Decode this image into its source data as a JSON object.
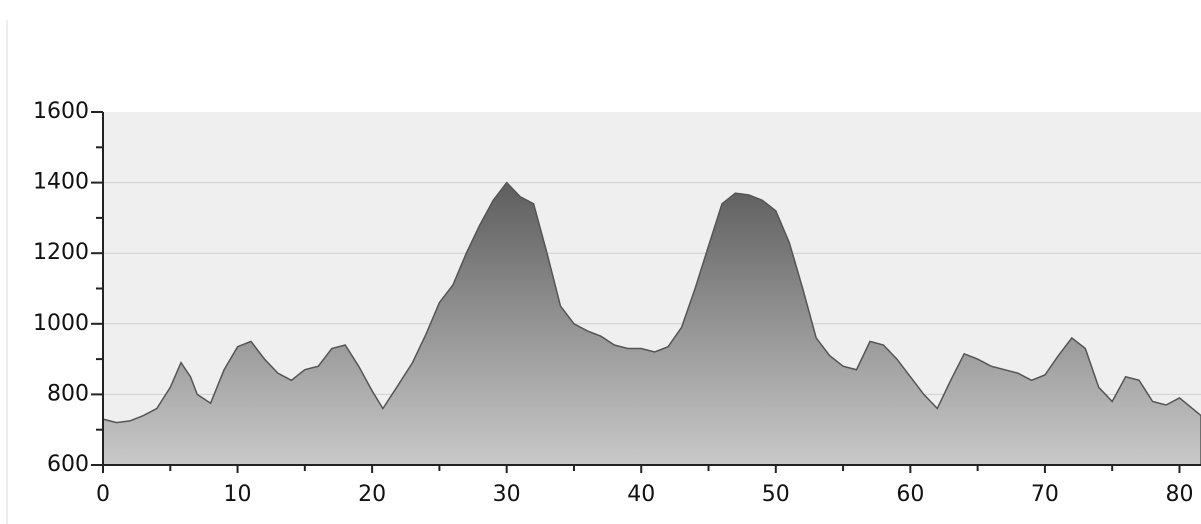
{
  "chart_data": {
    "type": "area",
    "x": [
      0,
      1,
      2,
      3,
      4,
      5,
      5.8,
      6.5,
      7,
      8,
      9,
      10,
      11,
      12,
      13,
      14,
      15,
      16,
      17,
      18,
      19,
      20,
      20.8,
      22,
      23,
      24,
      25,
      26,
      27,
      28,
      29,
      30,
      31,
      32,
      33,
      34,
      35,
      36,
      37,
      38,
      39,
      40,
      41,
      42,
      43,
      44,
      45,
      46,
      47,
      48,
      49,
      50,
      51,
      52,
      53,
      54,
      55,
      56,
      57,
      58,
      59,
      60,
      61,
      62,
      63,
      64,
      65,
      66,
      67,
      68,
      69,
      70,
      71,
      72,
      73,
      74,
      75,
      76,
      77,
      78,
      79,
      80,
      81.6
    ],
    "values": [
      730,
      720,
      725,
      740,
      760,
      820,
      890,
      850,
      800,
      775,
      870,
      935,
      950,
      900,
      860,
      840,
      870,
      880,
      930,
      940,
      880,
      810,
      760,
      830,
      890,
      970,
      1060,
      1110,
      1200,
      1280,
      1350,
      1400,
      1360,
      1340,
      1200,
      1050,
      1000,
      980,
      965,
      940,
      930,
      930,
      920,
      935,
      990,
      1100,
      1220,
      1340,
      1370,
      1365,
      1350,
      1320,
      1230,
      1100,
      960,
      910,
      880,
      870,
      950,
      940,
      900,
      850,
      800,
      760,
      840,
      915,
      900,
      880,
      870,
      860,
      840,
      855,
      910,
      960,
      930,
      820,
      780,
      850,
      840,
      780,
      770,
      790,
      740
    ],
    "color": "#8a8a8a",
    "xlim": [
      0,
      81.6
    ],
    "xticks": [
      0,
      10,
      20,
      30,
      40,
      50,
      60,
      70,
      80
    ],
    "ylim": [
      600,
      1600
    ],
    "yticks": [
      600,
      800,
      1000,
      1200,
      1400,
      1600
    ],
    "grid": true
  }
}
